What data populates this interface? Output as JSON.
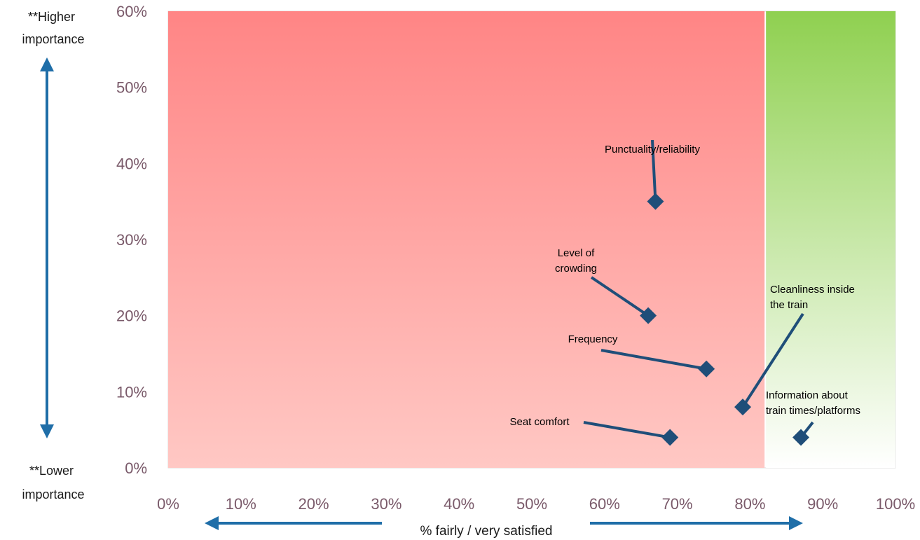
{
  "chart_data": {
    "type": "scatter",
    "xlabel": "% fairly / very satisfied",
    "xlim": [
      0,
      100
    ],
    "ylim": [
      0,
      60
    ],
    "x_ticks": [
      "0%",
      "10%",
      "20%",
      "30%",
      "40%",
      "50%",
      "60%",
      "70%",
      "80%",
      "90%",
      "100%"
    ],
    "y_ticks": [
      "0%",
      "10%",
      "20%",
      "30%",
      "40%",
      "50%",
      "60%"
    ],
    "y_top_label": "**Higher importance",
    "y_bottom_label": "**Lower importance",
    "zones": [
      {
        "from": 0,
        "to": 82,
        "color_top": "#ff8585",
        "color_bottom": "#ffc8c4"
      },
      {
        "from": 82,
        "to": 100,
        "color_top": "#8fd050",
        "color_bottom": "#ffffff"
      }
    ],
    "points": [
      {
        "label": "Punctuality/reliability",
        "x": 67,
        "y": 35
      },
      {
        "label": "Level of crowding",
        "x": 66,
        "y": 20
      },
      {
        "label": "Frequency",
        "x": 74,
        "y": 13
      },
      {
        "label": "Cleanliness inside the train",
        "x": 79,
        "y": 8
      },
      {
        "label": "Seat comfort",
        "x": 69,
        "y": 4
      },
      {
        "label": "Information about train times/platforms",
        "x": 87,
        "y": 4
      }
    ],
    "marker_color": "#1f4e79",
    "arrow_color": "#1f6ea8"
  }
}
